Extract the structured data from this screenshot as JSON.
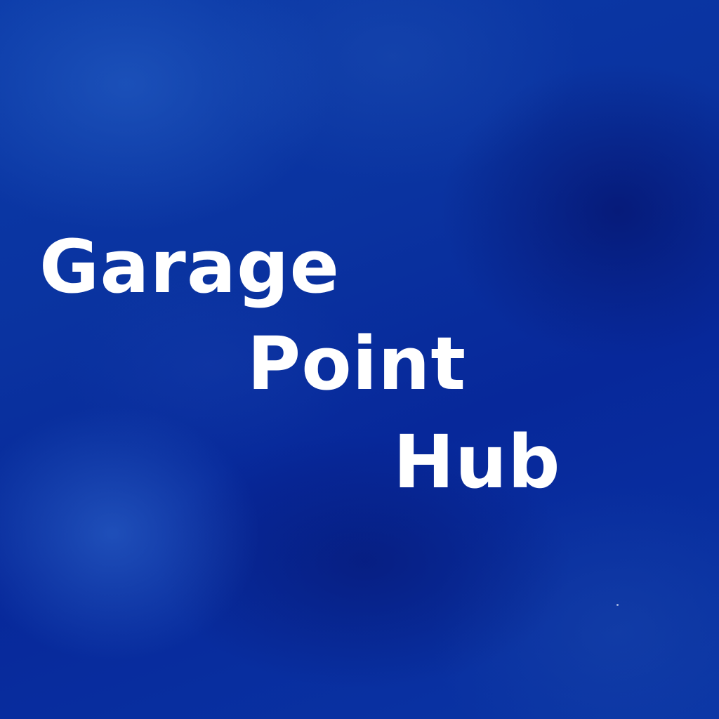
{
  "title": {
    "line1": "Garage",
    "line2": "Point",
    "line3": "Hub"
  },
  "colors": {
    "background": "#0a33a0",
    "text": "#ffffff"
  }
}
